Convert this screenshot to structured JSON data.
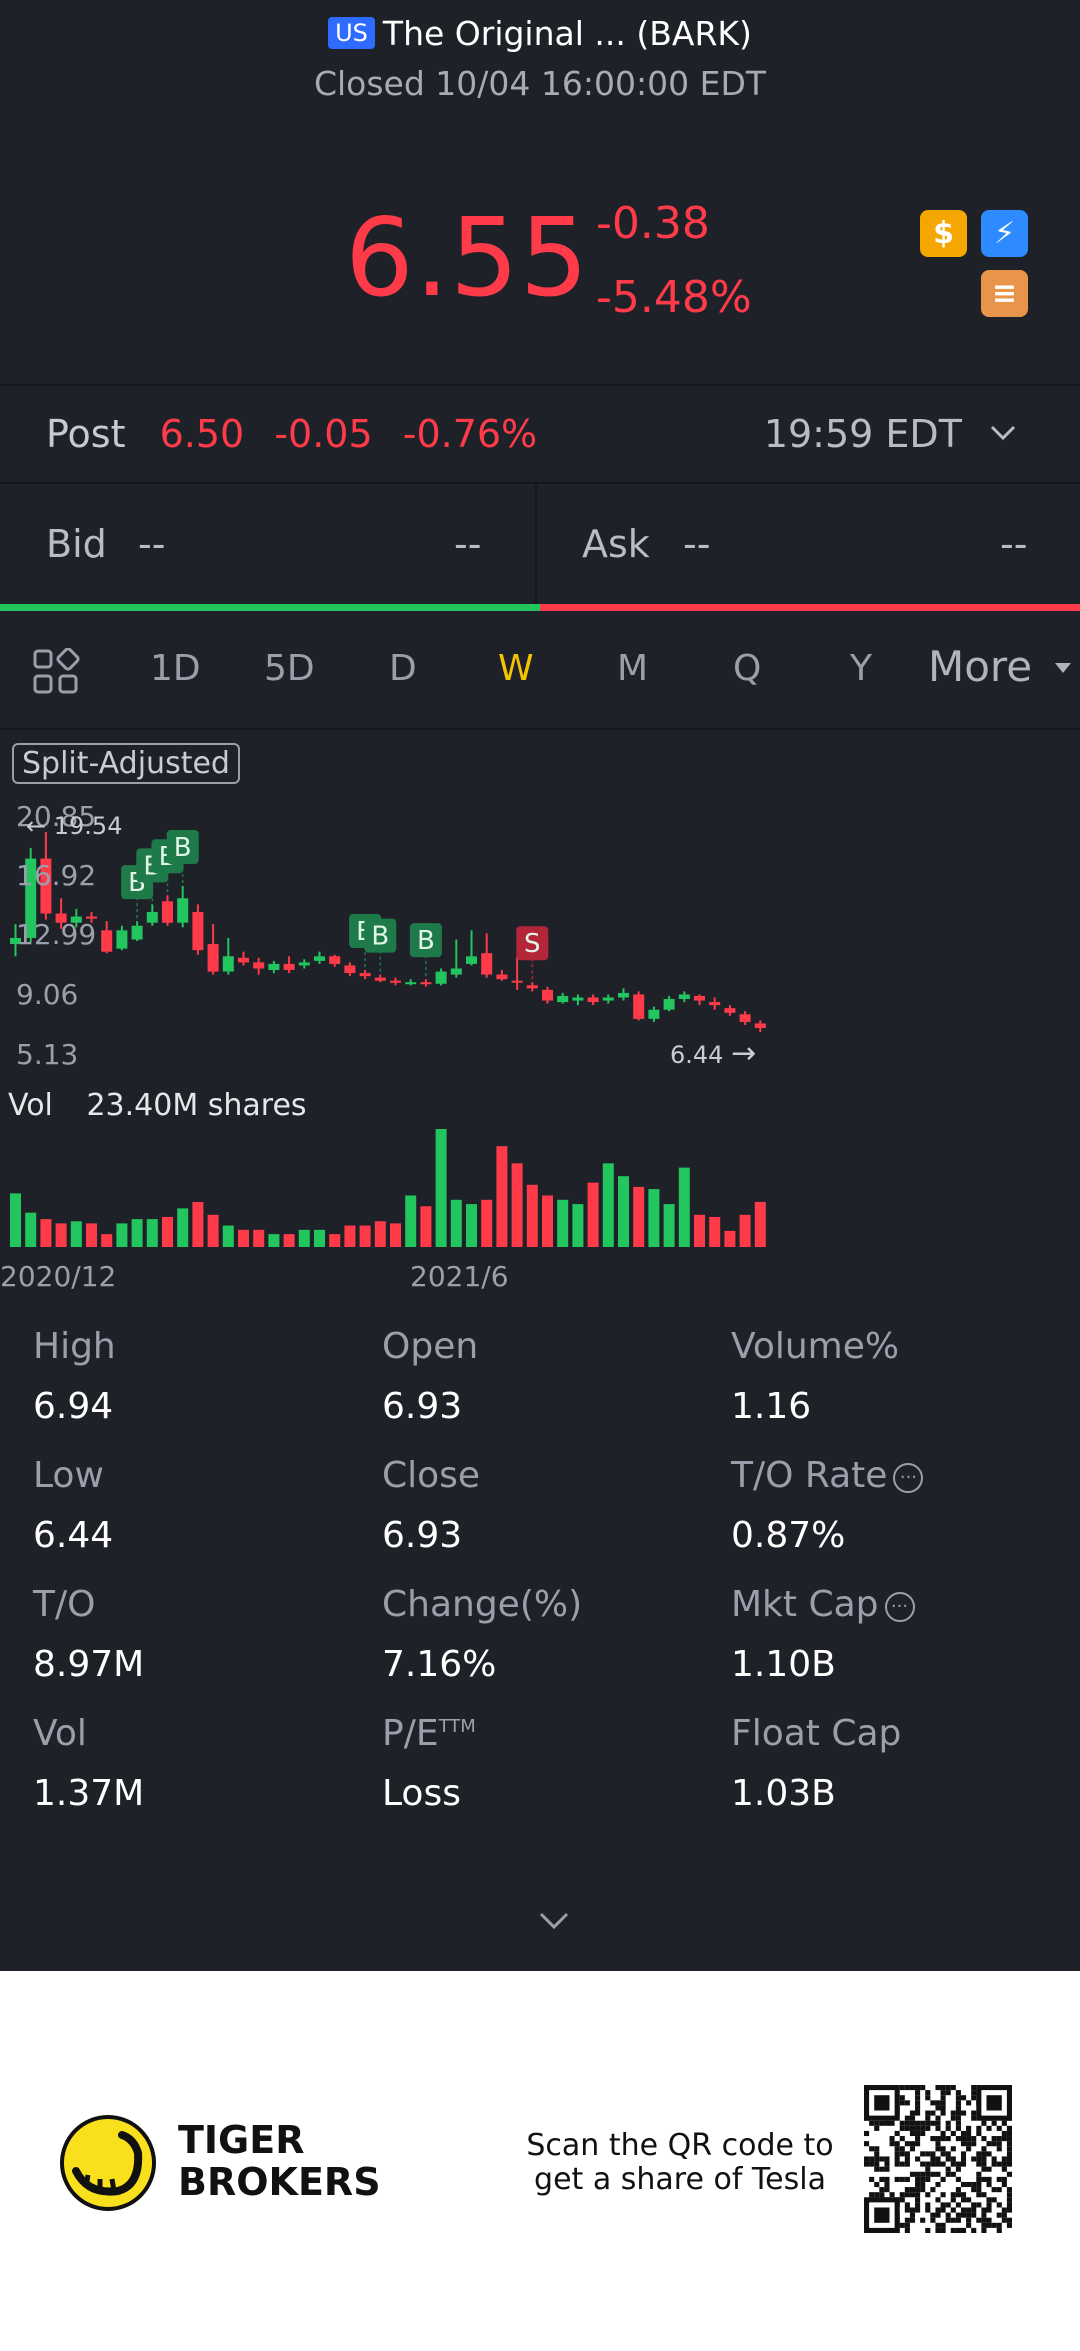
{
  "header": {
    "market_badge": "US",
    "title": "The Original ... (BARK)",
    "status": "Closed 10/04 16:00:00 EDT"
  },
  "quote": {
    "price": "6.55",
    "change": "-0.38",
    "change_pct": "-5.48%",
    "badges": [
      {
        "icon": "dollar-icon",
        "glyph": "$",
        "color": "#f5a600"
      },
      {
        "icon": "lightning-icon",
        "glyph": "⚡",
        "color": "#2e8bff"
      },
      {
        "icon": "stack-icon",
        "glyph": "≡",
        "color": "#e8944a"
      }
    ]
  },
  "post": {
    "label": "Post",
    "price": "6.50",
    "change": "-0.05",
    "change_pct": "-0.76%",
    "time": "19:59 EDT"
  },
  "bid": {
    "label": "Bid",
    "price": "--",
    "size": "--"
  },
  "ask": {
    "label": "Ask",
    "price": "--",
    "size": "--"
  },
  "tabs": [
    "1D",
    "5D",
    "D",
    "W",
    "M",
    "Q",
    "Y",
    "More"
  ],
  "active_tab": "W",
  "chart": {
    "split_label": "Split-Adjusted",
    "y_labels": [
      "20.85",
      "16.92",
      "12.99",
      "9.06",
      "5.13"
    ],
    "high_marker": "19.54",
    "low_marker": "6.44",
    "vol_label": "Vol",
    "vol_value": "23.40M shares",
    "x_labels": [
      "2020/12",
      "2021/6"
    ],
    "trade_marker_buy": "B",
    "trade_marker_sell": "S"
  },
  "chart_data": {
    "type": "candlestick",
    "ylim": [
      5.13,
      20.85
    ],
    "candles": [
      {
        "o": 12.2,
        "c": 12.6,
        "h": 13.5,
        "l": 11.4
      },
      {
        "o": 12.6,
        "c": 17.8,
        "h": 18.5,
        "l": 12.3
      },
      {
        "o": 17.8,
        "c": 14.2,
        "h": 19.54,
        "l": 13.8
      },
      {
        "o": 14.2,
        "c": 13.6,
        "h": 15.2,
        "l": 13.2
      },
      {
        "o": 13.6,
        "c": 14.0,
        "h": 14.5,
        "l": 13.3
      },
      {
        "o": 14.0,
        "c": 13.9,
        "h": 14.3,
        "l": 13.6
      },
      {
        "o": 13.1,
        "c": 11.7,
        "h": 13.7,
        "l": 11.6
      },
      {
        "o": 11.9,
        "c": 13.1,
        "h": 13.4,
        "l": 11.8
      },
      {
        "o": 12.5,
        "c": 13.4,
        "h": 13.7,
        "l": 12.4
      },
      {
        "o": 13.6,
        "c": 14.3,
        "h": 14.8,
        "l": 13.4
      },
      {
        "o": 15.0,
        "c": 13.6,
        "h": 15.4,
        "l": 13.4
      },
      {
        "o": 13.6,
        "c": 15.2,
        "h": 16.0,
        "l": 13.3
      },
      {
        "o": 14.3,
        "c": 11.8,
        "h": 14.8,
        "l": 11.5
      },
      {
        "o": 12.2,
        "c": 10.4,
        "h": 13.5,
        "l": 10.2
      },
      {
        "o": 10.4,
        "c": 11.4,
        "h": 12.6,
        "l": 10.2
      },
      {
        "o": 11.3,
        "c": 11.0,
        "h": 11.7,
        "l": 10.8
      },
      {
        "o": 11.0,
        "c": 10.6,
        "h": 11.3,
        "l": 10.2
      },
      {
        "o": 10.5,
        "c": 10.9,
        "h": 11.1,
        "l": 10.3
      },
      {
        "o": 10.9,
        "c": 10.5,
        "h": 11.4,
        "l": 10.3
      },
      {
        "o": 10.8,
        "c": 11.0,
        "h": 11.2,
        "l": 10.6
      },
      {
        "o": 11.1,
        "c": 11.4,
        "h": 11.7,
        "l": 10.9
      },
      {
        "o": 11.4,
        "c": 10.9,
        "h": 11.5,
        "l": 10.7
      },
      {
        "o": 10.8,
        "c": 10.3,
        "h": 11.0,
        "l": 10.1
      },
      {
        "o": 10.3,
        "c": 10.1,
        "h": 10.5,
        "l": 9.9
      },
      {
        "o": 10.0,
        "c": 9.8,
        "h": 10.2,
        "l": 9.7
      },
      {
        "o": 9.8,
        "c": 9.7,
        "h": 10.0,
        "l": 9.5
      },
      {
        "o": 9.7,
        "c": 9.7,
        "h": 9.9,
        "l": 9.5
      },
      {
        "o": 9.7,
        "c": 9.6,
        "h": 9.9,
        "l": 9.4
      },
      {
        "o": 9.6,
        "c": 10.4,
        "h": 10.6,
        "l": 9.5
      },
      {
        "o": 10.2,
        "c": 10.6,
        "h": 12.5,
        "l": 10.0
      },
      {
        "o": 10.9,
        "c": 11.4,
        "h": 13.1,
        "l": 10.8
      },
      {
        "o": 11.6,
        "c": 10.2,
        "h": 12.9,
        "l": 10.0
      },
      {
        "o": 10.2,
        "c": 9.9,
        "h": 10.5,
        "l": 9.8
      },
      {
        "o": 9.8,
        "c": 9.7,
        "h": 11.4,
        "l": 9.2
      },
      {
        "o": 9.5,
        "c": 9.3,
        "h": 9.7,
        "l": 9.1
      },
      {
        "o": 9.2,
        "c": 8.5,
        "h": 9.4,
        "l": 8.3
      },
      {
        "o": 8.4,
        "c": 8.8,
        "h": 9.0,
        "l": 8.3
      },
      {
        "o": 8.5,
        "c": 8.7,
        "h": 8.9,
        "l": 8.2
      },
      {
        "o": 8.7,
        "c": 8.4,
        "h": 8.9,
        "l": 8.2
      },
      {
        "o": 8.5,
        "c": 8.7,
        "h": 8.9,
        "l": 8.3
      },
      {
        "o": 8.7,
        "c": 9.0,
        "h": 9.3,
        "l": 8.5
      },
      {
        "o": 8.9,
        "c": 7.3,
        "h": 9.1,
        "l": 7.2
      },
      {
        "o": 7.3,
        "c": 7.9,
        "h": 8.1,
        "l": 7.1
      },
      {
        "o": 7.9,
        "c": 8.6,
        "h": 8.8,
        "l": 7.8
      },
      {
        "o": 8.6,
        "c": 8.9,
        "h": 9.1,
        "l": 8.4
      },
      {
        "o": 8.8,
        "c": 8.5,
        "h": 8.9,
        "l": 8.2
      },
      {
        "o": 8.4,
        "c": 8.2,
        "h": 8.7,
        "l": 7.9
      },
      {
        "o": 8.0,
        "c": 7.7,
        "h": 8.2,
        "l": 7.5
      },
      {
        "o": 7.6,
        "c": 7.1,
        "h": 7.8,
        "l": 6.9
      },
      {
        "o": 7.0,
        "c": 6.7,
        "h": 7.2,
        "l": 6.44
      }
    ],
    "volume": [
      5,
      3.2,
      2.6,
      2.2,
      2.4,
      2.2,
      1.2,
      2.2,
      2.6,
      2.6,
      2.8,
      3.6,
      4.2,
      3.0,
      2.0,
      1.6,
      1.6,
      1.2,
      1.2,
      1.6,
      1.6,
      1.2,
      2.0,
      2.0,
      2.4,
      2.2,
      4.8,
      3.8,
      11.0,
      4.4,
      4.0,
      4.4,
      9.4,
      7.8,
      5.8,
      4.8,
      4.4,
      4.0,
      6.0,
      7.8,
      6.6,
      5.6,
      5.4,
      4.0,
      7.4,
      3.0,
      2.8,
      1.5,
      3.0,
      4.2
    ],
    "buy_markers": [
      8,
      9,
      10,
      11,
      23,
      24,
      27
    ],
    "sell_markers": [
      34
    ]
  },
  "stats": [
    {
      "label": "High",
      "value": "6.94"
    },
    {
      "label": "Open",
      "value": "6.93"
    },
    {
      "label": "Volume%",
      "value": "1.16"
    },
    {
      "label": "Low",
      "value": "6.44"
    },
    {
      "label": "Close",
      "value": "6.93"
    },
    {
      "label": "T/O Rate",
      "value": "0.87%",
      "info": true
    },
    {
      "label": "T/O",
      "value": "8.97M"
    },
    {
      "label": "Change(%)",
      "value": "7.16%"
    },
    {
      "label": "Mkt Cap",
      "value": "1.10B",
      "info": true
    },
    {
      "label": "Vol",
      "value": "1.37M"
    },
    {
      "label": "P/E",
      "sup": "TTM",
      "value": "Loss"
    },
    {
      "label": "Float Cap",
      "value": "1.03B"
    }
  ],
  "footer": {
    "brand_line1": "TIGER",
    "brand_line2": "BROKERS",
    "promo_line1": "Scan the QR code to",
    "promo_line2": "get a share of Tesla"
  }
}
